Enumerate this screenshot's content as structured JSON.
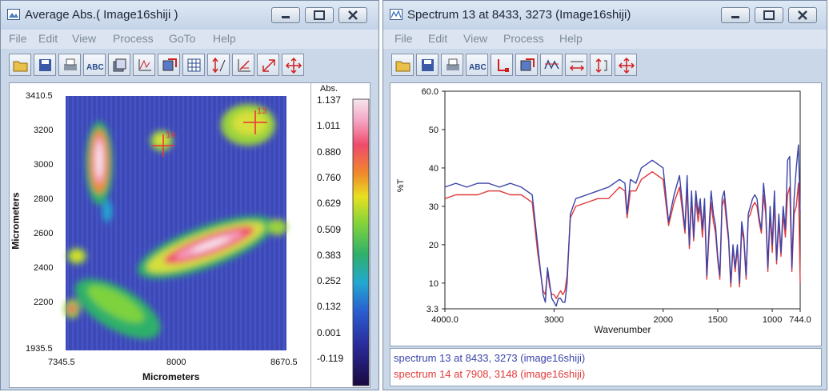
{
  "left_window": {
    "title": "Average Abs.( Image16shiji )",
    "menu": [
      "File",
      "Edit",
      "View",
      "Process",
      "GoTo",
      "Help"
    ],
    "toolbar_icons": [
      "open-folder-icon",
      "save-icon",
      "print-icon",
      "abc-label-icon",
      "layers-icon",
      "peak-pick-icon",
      "image-copy-icon",
      "grid-icon",
      "arrows-vertical-icon",
      "axis-scale-icon",
      "zoom-diagonal-icon",
      "move-arrows-icon"
    ],
    "map": {
      "x_label": "Micrometers",
      "y_label": "Micrometers",
      "x_ticks": [
        "7345.5",
        "8000",
        "8670.5"
      ],
      "y_ticks": [
        "3410.5",
        "3200",
        "3000",
        "2800",
        "2600",
        "2400",
        "2200",
        "1935.5"
      ],
      "markers": [
        {
          "label": "13"
        },
        {
          "label": "14"
        }
      ]
    },
    "colorbar": {
      "title": "Abs.",
      "ticks": [
        "1.137",
        "1.011",
        "0.880",
        "0.760",
        "0.629",
        "0.509",
        "0.383",
        "0.252",
        "0.132",
        "0.001",
        "-0.119"
      ]
    }
  },
  "right_window": {
    "title": "Spectrum 13 at 8433, 3273 (Image16shiji)",
    "menu": [
      "File",
      "Edit",
      "View",
      "Process",
      "Help"
    ],
    "toolbar_icons": [
      "open-folder-icon",
      "save-icon",
      "print-icon",
      "abc-label-icon",
      "peak-marker-icon",
      "image-copy-icon",
      "spectrum-icon",
      "expand-horizontal-icon",
      "expand-vertical-icon",
      "move-arrows-icon"
    ],
    "legend": [
      {
        "text": "spectrum 13 at 8433, 3273 (image16shiji)",
        "color": "#3a44a8"
      },
      {
        "text": "spectrum 14 at 7908, 3148 (image16shiji)",
        "color": "#e23a3a"
      }
    ]
  },
  "chart_data": {
    "type": "line",
    "xlabel": "Wavenumber",
    "ylabel": "%T",
    "xlim": [
      4000.0,
      744.0
    ],
    "ylim": [
      3.3,
      60.0
    ],
    "x_ticks": [
      "4000.0",
      "3000",
      "2000",
      "1500",
      "1000",
      "744.0"
    ],
    "y_ticks": [
      "60.0",
      "50",
      "40",
      "30",
      "20",
      "10",
      "3.3"
    ],
    "series": [
      {
        "name": "spectrum 13 at 8433, 3273 (image16shiji)",
        "color": "#3a44a8",
        "x": [
          4000,
          3900,
          3800,
          3700,
          3600,
          3500,
          3400,
          3300,
          3200,
          3150,
          3100,
          3080,
          3060,
          3040,
          3020,
          3000,
          2980,
          2960,
          2940,
          2920,
          2900,
          2880,
          2850,
          2800,
          2700,
          2600,
          2500,
          2400,
          2350,
          2330,
          2300,
          2250,
          2200,
          2150,
          2100,
          2050,
          2000,
          1950,
          1900,
          1850,
          1800,
          1780,
          1760,
          1740,
          1720,
          1700,
          1680,
          1660,
          1640,
          1620,
          1600,
          1580,
          1560,
          1540,
          1520,
          1500,
          1480,
          1460,
          1440,
          1420,
          1400,
          1380,
          1360,
          1340,
          1320,
          1300,
          1280,
          1260,
          1240,
          1220,
          1200,
          1180,
          1160,
          1140,
          1120,
          1100,
          1080,
          1060,
          1040,
          1020,
          1000,
          980,
          960,
          940,
          920,
          900,
          880,
          860,
          840,
          820,
          800,
          780,
          760,
          744
        ],
        "y": [
          35,
          36,
          35,
          36,
          36,
          35,
          36,
          35,
          33,
          20,
          7,
          5,
          14,
          10,
          6,
          5,
          4,
          6,
          6,
          5,
          5,
          10,
          28,
          32,
          33,
          34,
          35,
          37,
          36,
          28,
          37,
          36,
          40,
          41,
          42,
          41,
          40,
          26,
          33,
          38,
          24,
          38,
          20,
          34,
          22,
          34,
          28,
          32,
          24,
          32,
          12,
          24,
          34,
          28,
          25,
          17,
          12,
          32,
          34,
          28,
          22,
          10,
          20,
          14,
          20,
          10,
          26,
          22,
          12,
          28,
          30,
          32,
          33,
          32,
          27,
          24,
          36,
          30,
          14,
          30,
          20,
          34,
          16,
          28,
          18,
          30,
          24,
          42,
          43,
          14,
          32,
          40,
          46,
          28
        ]
      },
      {
        "name": "spectrum 14 at 7908, 3148 (image16shiji)",
        "color": "#e23a3a",
        "x": [
          4000,
          3900,
          3800,
          3700,
          3600,
          3500,
          3400,
          3300,
          3200,
          3150,
          3100,
          3080,
          3060,
          3040,
          3020,
          3000,
          2980,
          2960,
          2940,
          2920,
          2900,
          2880,
          2850,
          2800,
          2700,
          2600,
          2500,
          2400,
          2350,
          2330,
          2300,
          2250,
          2200,
          2150,
          2100,
          2050,
          2000,
          1950,
          1900,
          1850,
          1800,
          1780,
          1760,
          1740,
          1720,
          1700,
          1680,
          1660,
          1640,
          1620,
          1600,
          1580,
          1560,
          1540,
          1520,
          1500,
          1480,
          1460,
          1440,
          1420,
          1400,
          1380,
          1360,
          1340,
          1320,
          1300,
          1280,
          1260,
          1240,
          1220,
          1200,
          1180,
          1160,
          1140,
          1120,
          1100,
          1080,
          1060,
          1040,
          1020,
          1000,
          980,
          960,
          940,
          920,
          900,
          880,
          860,
          840,
          820,
          800,
          780,
          760,
          744
        ],
        "y": [
          32,
          33,
          33,
          33,
          34,
          34,
          33,
          33,
          31,
          18,
          8,
          7,
          13,
          9,
          7,
          7,
          6,
          7,
          8,
          7,
          8,
          12,
          27,
          30,
          31,
          32,
          32,
          35,
          34,
          27,
          34,
          34,
          37,
          38,
          39,
          38,
          37,
          25,
          31,
          35,
          23,
          35,
          19,
          32,
          21,
          32,
          26,
          30,
          22,
          30,
          11,
          22,
          31,
          26,
          23,
          16,
          11,
          30,
          32,
          26,
          21,
          9,
          19,
          13,
          19,
          9,
          24,
          21,
          11,
          27,
          28,
          30,
          31,
          30,
          26,
          23,
          33,
          28,
          13,
          28,
          18,
          31,
          15,
          26,
          17,
          28,
          22,
          33,
          35,
          13,
          28,
          30,
          36,
          10
        ]
      }
    ]
  }
}
